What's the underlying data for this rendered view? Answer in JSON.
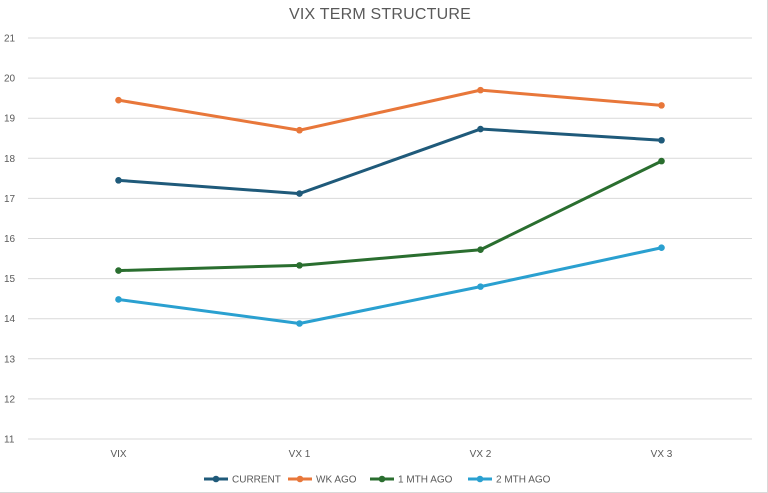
{
  "chart_data": {
    "type": "line",
    "title": "VIX TERM STRUCTURE",
    "xlabel": "",
    "ylabel": "",
    "categories": [
      "VIX",
      "VX 1",
      "VX 2",
      "VX 3"
    ],
    "y_ticks": [
      "11",
      "12",
      "13",
      "14",
      "15",
      "16",
      "17",
      "18",
      "19",
      "20",
      "21"
    ],
    "ylim": [
      11,
      21
    ],
    "grid": true,
    "legend_position": "bottom",
    "series": [
      {
        "name": "CURRENT",
        "color": "#1f5a7a",
        "values": [
          17.45,
          17.12,
          18.73,
          18.45
        ]
      },
      {
        "name": "WK AGO",
        "color": "#e8773a",
        "values": [
          19.45,
          18.7,
          19.7,
          19.32
        ]
      },
      {
        "name": "1 MTH AGO",
        "color": "#2a6e2f",
        "values": [
          15.2,
          15.33,
          15.72,
          17.93
        ]
      },
      {
        "name": "2 MTH AGO",
        "color": "#2aa0d0",
        "values": [
          14.48,
          13.88,
          14.8,
          15.77
        ]
      }
    ]
  }
}
